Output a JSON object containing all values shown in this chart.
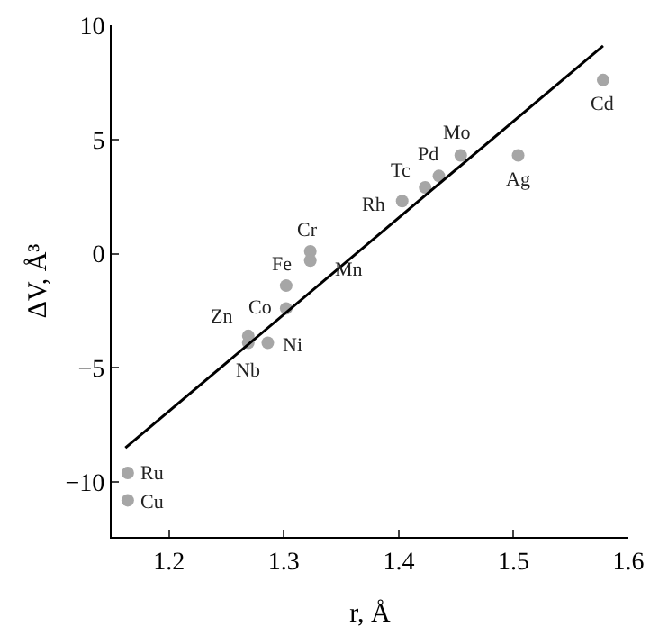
{
  "chart_data": {
    "type": "scatter",
    "xlabel": "r, Å",
    "ylabel": "ΔV, Å³",
    "series": [
      {
        "color": "#a6a6a6",
        "marker": "circle",
        "x": [
          1.578,
          1.454,
          1.504,
          1.435,
          1.423,
          1.403,
          1.323,
          1.323,
          1.302,
          1.302,
          1.269,
          1.269,
          1.286,
          1.164,
          1.164
        ],
        "values": [
          7.6,
          4.3,
          4.3,
          3.4,
          2.9,
          2.3,
          0.1,
          -0.3,
          -1.4,
          -2.4,
          -3.6,
          -3.9,
          -3.9,
          -9.6,
          -10.8
        ]
      },
      {
        "type": "line",
        "color": "#000000",
        "line_style": "solid",
        "x": [
          1.162,
          1.578
        ],
        "values": [
          -8.5,
          9.1
        ]
      }
    ],
    "annotations": [
      {
        "text": "Cd",
        "x": 1.578,
        "y": 7.6
      },
      {
        "text": "Mo",
        "x": 1.454,
        "y": 4.3
      },
      {
        "text": "Ag",
        "x": 1.504,
        "y": 4.3
      },
      {
        "text": "Pd",
        "x": 1.435,
        "y": 3.4
      },
      {
        "text": "Tc",
        "x": 1.423,
        "y": 2.9
      },
      {
        "text": "Rh",
        "x": 1.403,
        "y": 2.3
      },
      {
        "text": "Cr",
        "x": 1.323,
        "y": 0.1
      },
      {
        "text": "Mn",
        "x": 1.323,
        "y": -0.3
      },
      {
        "text": "Fe",
        "x": 1.302,
        "y": -1.4
      },
      {
        "text": "Co",
        "x": 1.302,
        "y": -2.4
      },
      {
        "text": "Zn",
        "x": 1.269,
        "y": -3.6
      },
      {
        "text": "Nb",
        "x": 1.269,
        "y": -3.9
      },
      {
        "text": "Ni",
        "x": 1.286,
        "y": -3.9
      },
      {
        "text": "Ru",
        "x": 1.164,
        "y": -9.6
      },
      {
        "text": "Cu",
        "x": 1.164,
        "y": -10.8
      }
    ],
    "xlim": [
      1.15,
      1.6
    ],
    "ylim": [
      -12.4,
      10
    ],
    "xticks": [
      1.2,
      1.3,
      1.4,
      1.5,
      1.6
    ],
    "yticks": [
      -10,
      -5,
      0,
      5,
      10
    ]
  }
}
